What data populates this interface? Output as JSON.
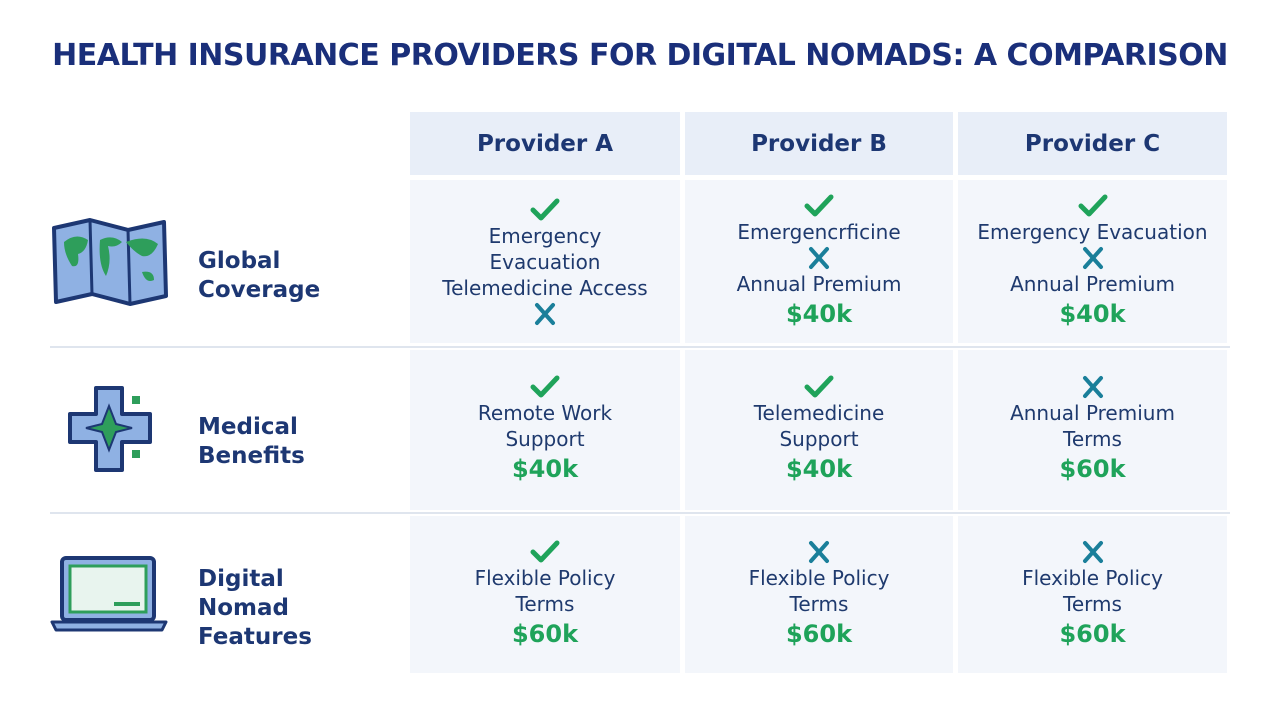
{
  "title": "HEALTH INSURANCE PROVIDERS FOR DIGITAL NOMADS: A COMPARISON",
  "table": {
    "columns": [
      "Provider A",
      "Provider B",
      "Provider C"
    ],
    "rows": [
      {
        "label": "Global Coverage",
        "cells": [
          {
            "items": [
              {
                "icon": "check"
              },
              {
                "text": "Emergency"
              },
              {
                "text": "Evacuation"
              },
              {
                "text": "Telemedicine Access"
              },
              {
                "icon": "cross"
              }
            ]
          },
          {
            "items": [
              {
                "icon": "check"
              },
              {
                "text": "Emergencrficine"
              },
              {
                "icon": "cross"
              },
              {
                "text": "Annual Premium"
              },
              {
                "price": "$40k"
              }
            ]
          },
          {
            "items": [
              {
                "icon": "check"
              },
              {
                "text": "Emergency Evacuation"
              },
              {
                "icon": "cross"
              },
              {
                "text": "Annual Premium"
              },
              {
                "price": "$40k"
              }
            ]
          }
        ]
      },
      {
        "label": "Medical Benefits",
        "cells": [
          {
            "items": [
              {
                "icon": "check"
              },
              {
                "text": "Remote Work"
              },
              {
                "text": "Support"
              },
              {
                "price": "$40k"
              }
            ]
          },
          {
            "items": [
              {
                "icon": "check"
              },
              {
                "text": "Telemedicine"
              },
              {
                "text": "Support"
              },
              {
                "price": "$40k"
              }
            ]
          },
          {
            "items": [
              {
                "icon": "cross"
              },
              {
                "text": "Annual Premium"
              },
              {
                "text": "Terms"
              },
              {
                "price": "$60k"
              }
            ]
          }
        ]
      },
      {
        "label": "Digital Nomad Features",
        "cells": [
          {
            "items": [
              {
                "icon": "check"
              },
              {
                "text": "Flexible Policy"
              },
              {
                "text": "Terms"
              },
              {
                "price": "$60k"
              }
            ]
          },
          {
            "items": [
              {
                "icon": "cross"
              },
              {
                "text": "Flexible Policy"
              },
              {
                "text": "Terms"
              },
              {
                "price": "$60k"
              }
            ]
          },
          {
            "items": [
              {
                "icon": "cross"
              },
              {
                "text": "Flexible Policy"
              },
              {
                "text": "Terms"
              },
              {
                "price": "$60k"
              }
            ]
          }
        ]
      }
    ]
  }
}
